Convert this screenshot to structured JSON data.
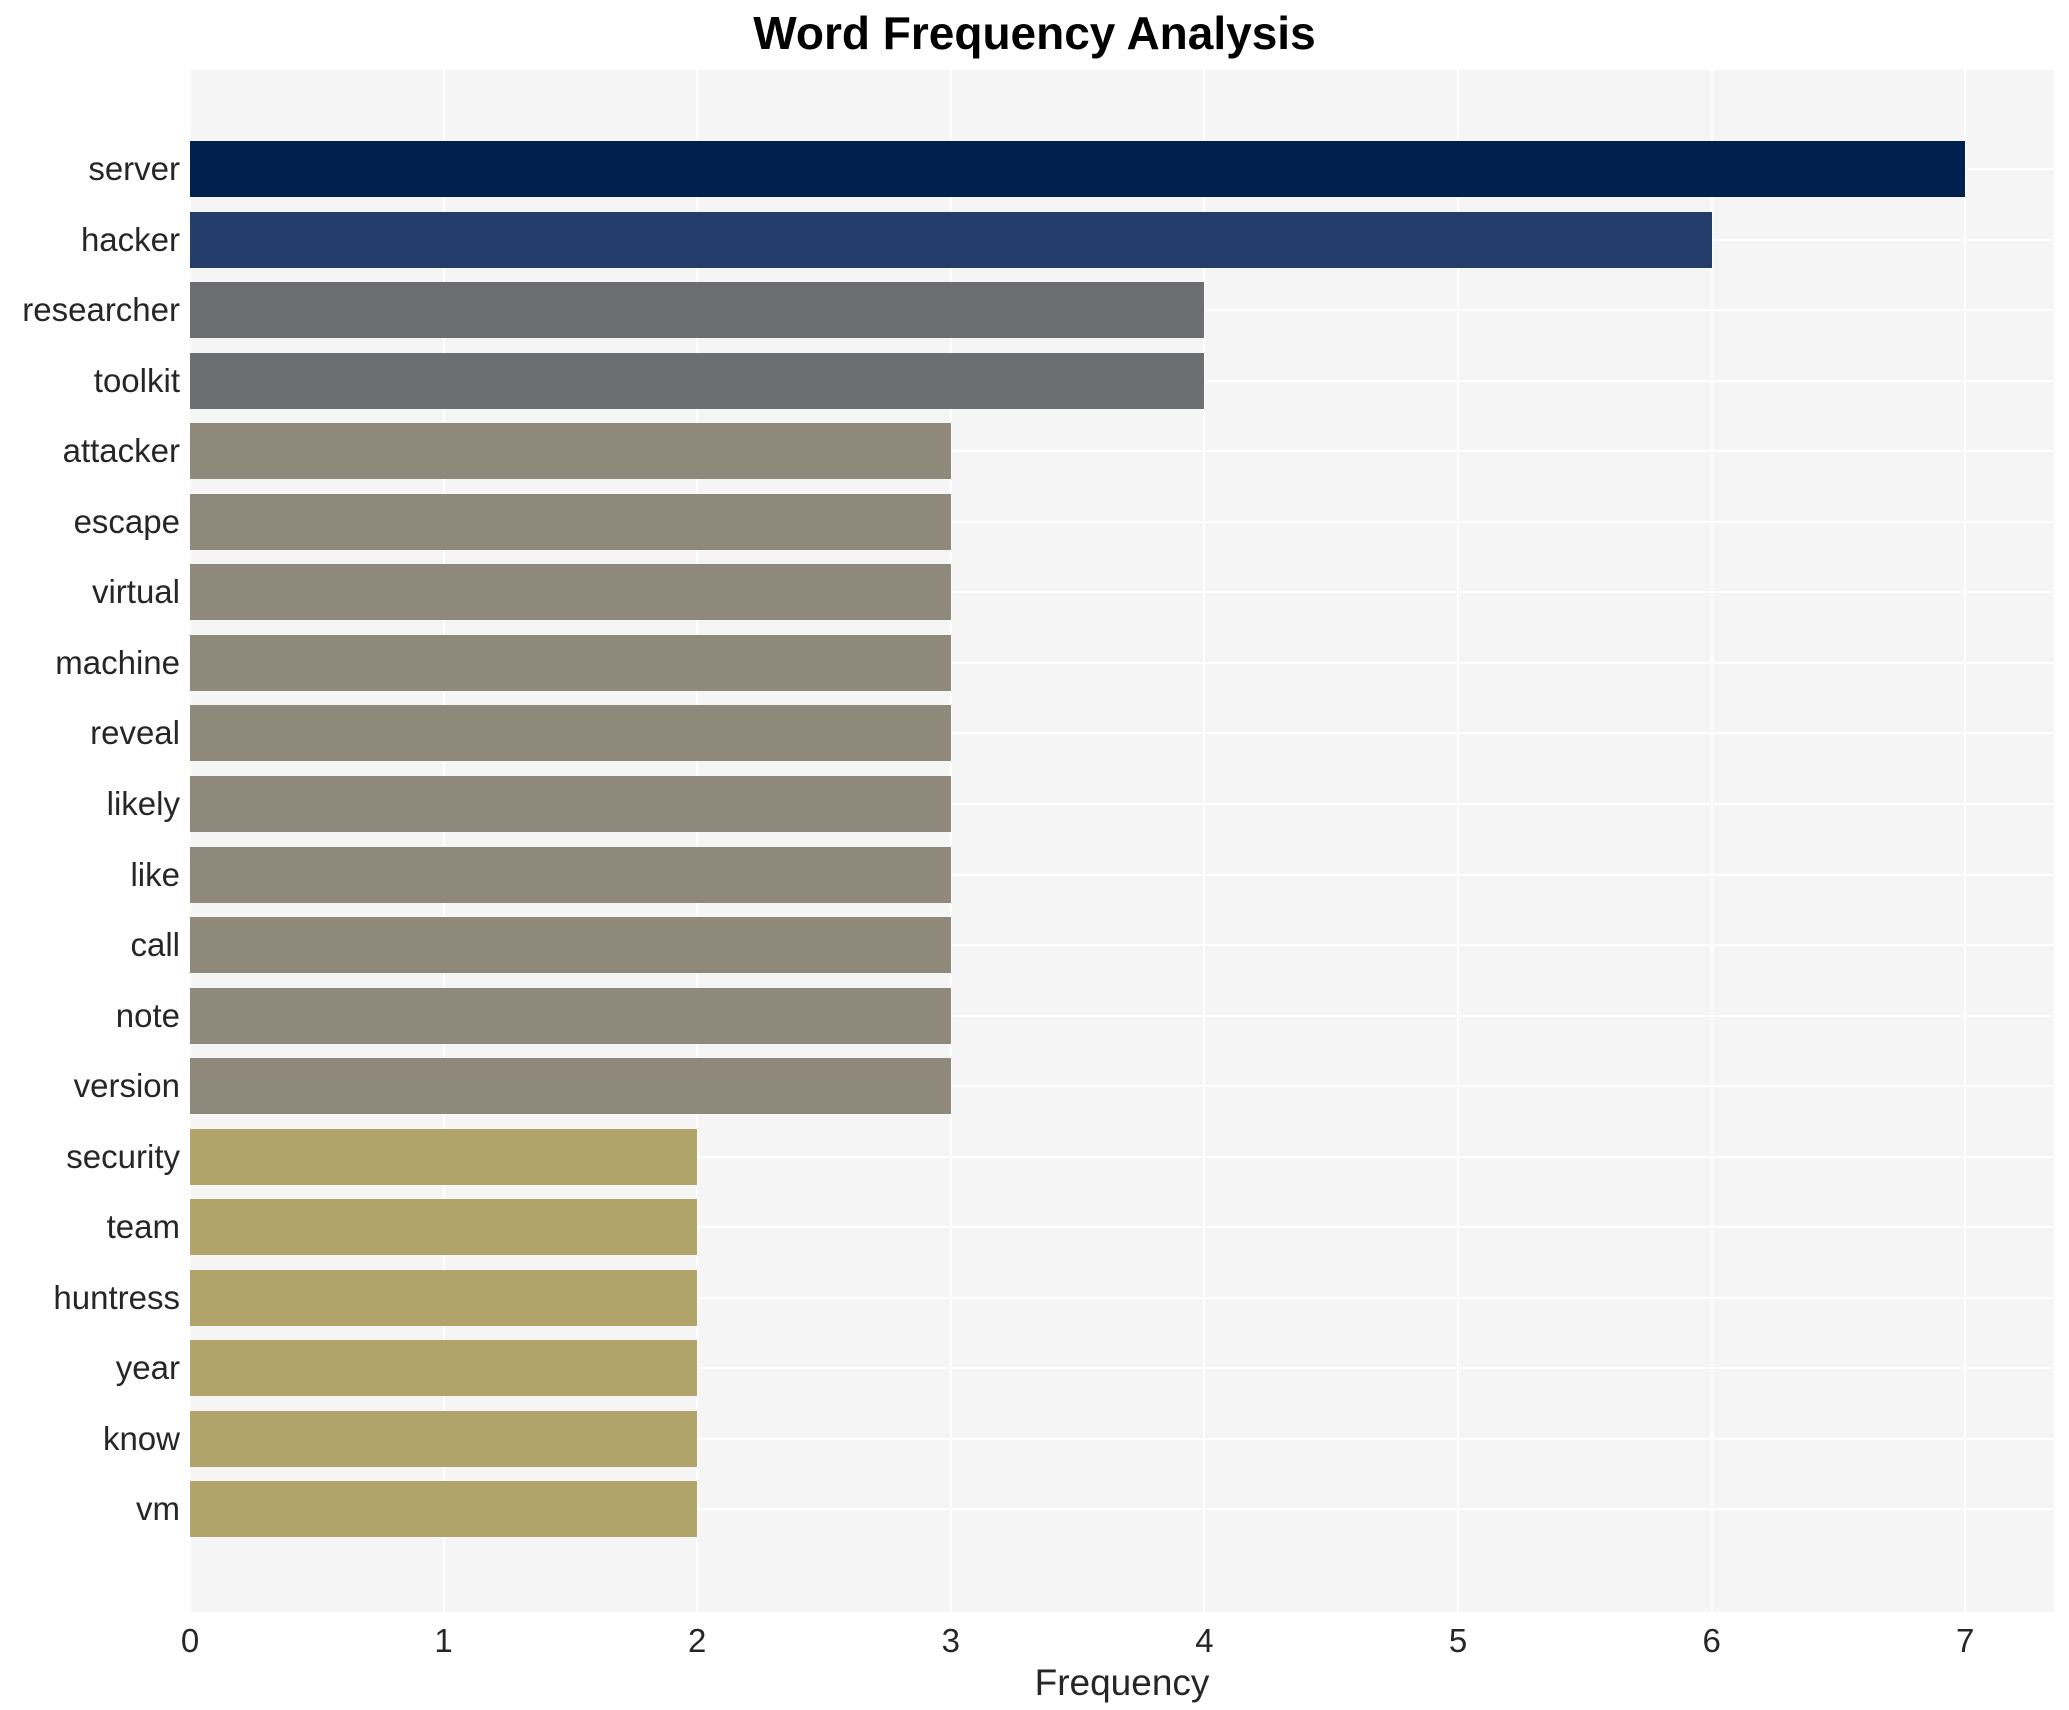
{
  "chart_data": {
    "type": "bar",
    "orientation": "horizontal",
    "title": "Word Frequency Analysis",
    "xlabel": "Frequency",
    "ylabel": "",
    "categories": [
      "server",
      "hacker",
      "researcher",
      "toolkit",
      "attacker",
      "escape",
      "virtual",
      "machine",
      "reveal",
      "likely",
      "like",
      "call",
      "note",
      "version",
      "security",
      "team",
      "huntress",
      "year",
      "know",
      "vm"
    ],
    "values": [
      7,
      6,
      4,
      4,
      3,
      3,
      3,
      3,
      3,
      3,
      3,
      3,
      3,
      3,
      2,
      2,
      2,
      2,
      2,
      2
    ],
    "xticks": [
      0,
      1,
      2,
      3,
      4,
      5,
      6,
      7
    ],
    "xlim": [
      0,
      7.35
    ],
    "grid": true,
    "legend": false,
    "colors_by_value": {
      "7": "#00214d",
      "6": "#253d6b",
      "4": "#6c6e72",
      "3": "#8e897b",
      "2": "#b1a46a"
    },
    "plot_bg": "#f5f5f6",
    "grid_color": "#ffffff",
    "text_color": "#262626",
    "title_color": "#000000"
  }
}
